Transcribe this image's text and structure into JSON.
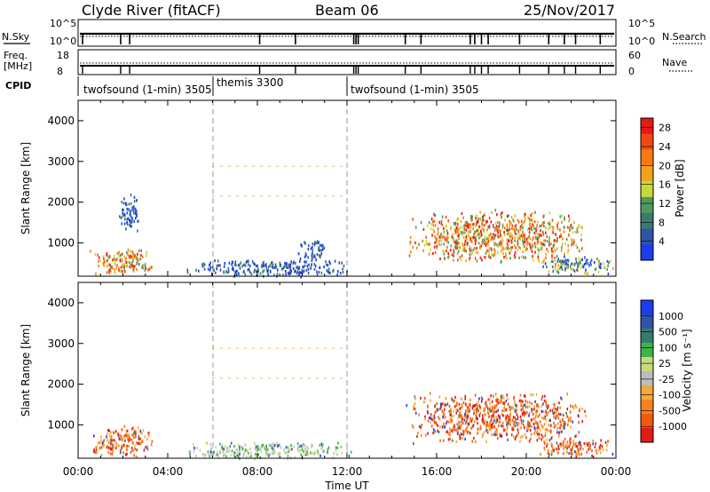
{
  "header": {
    "station": "Clyde River (fitACF)",
    "beam": "Beam 06",
    "date": "25/Nov/2017"
  },
  "params": {
    "nsky_label": "N.Sky",
    "nsky_ticks": [
      "10^5",
      "10^0"
    ],
    "nsearch_label": "N.Search",
    "nsearch_ticks": [
      "10^5",
      "10^0"
    ],
    "freq_label": "Freq.",
    "freq_unit": "[MHz]",
    "freq_ticks": [
      "18",
      "8"
    ],
    "nave_label": "Nave",
    "nave_ticks": [
      "60",
      "0"
    ],
    "cpid_label": "CPID"
  },
  "cpid_segments": [
    {
      "name": "twofsound (1-min) 3505",
      "start_hour": 0,
      "end_hour": 6
    },
    {
      "name": "themis 3300",
      "start_hour": 6,
      "end_hour": 12
    },
    {
      "name": "twofsound (1-min) 3505",
      "start_hour": 12,
      "end_hour": 24
    }
  ],
  "colors": {
    "power": [
      "#1c3cf0",
      "#2e55a8",
      "#3c7a6e",
      "#4f9a5a",
      "#c6d83a",
      "#f2a21c",
      "#f57a14",
      "#f04a10",
      "#e61818"
    ],
    "velocity": [
      "#e61818",
      "#f05a10",
      "#f5821c",
      "#f5a83a",
      "#bdbdbd",
      "#c4dc7a",
      "#3fb24a",
      "#3a7a6a",
      "#2e55a8",
      "#1c3cf0"
    ]
  },
  "chart_data": [
    {
      "type": "heatmap",
      "title": "Power",
      "ylabel": "Slant Range [km]",
      "xlabel": "Time UT",
      "x_ticks": [
        "00:00",
        "04:00",
        "08:00",
        "12:00",
        "16:00",
        "20:00",
        "00:00"
      ],
      "y_ticks": [
        "1000",
        "2000",
        "3000",
        "4000"
      ],
      "xlim_hours": [
        0,
        24
      ],
      "ylim_km": [
        180,
        4500
      ],
      "colorbar": {
        "label": "Power [dB]",
        "ticks": [
          "4",
          "8",
          "12",
          "16",
          "20",
          "24",
          "28"
        ],
        "range": [
          0,
          30
        ]
      },
      "scatter_regions": [
        {
          "t": [
            0.6,
            3.3
          ],
          "r": [
            250,
            900
          ],
          "level": "high"
        },
        {
          "t": [
            1.8,
            2.7
          ],
          "r": [
            1300,
            2200
          ],
          "level": "low"
        },
        {
          "t": [
            5.0,
            12.0
          ],
          "r": [
            200,
            600
          ],
          "level": "low"
        },
        {
          "t": [
            9.8,
            11.0
          ],
          "r": [
            600,
            1100
          ],
          "level": "low"
        },
        {
          "t": [
            14.8,
            22.5
          ],
          "r": [
            600,
            1800
          ],
          "level": "high"
        },
        {
          "t": [
            20.5,
            23.8
          ],
          "r": [
            250,
            700
          ],
          "level": "mid"
        }
      ],
      "range_lines_km": [
        2880,
        2150
      ]
    },
    {
      "type": "heatmap",
      "title": "Velocity",
      "ylabel": "Slant Range [km]",
      "xlabel": "Time UT",
      "x_ticks": [
        "00:00",
        "04:00",
        "08:00",
        "12:00",
        "16:00",
        "20:00",
        "00:00"
      ],
      "y_ticks": [
        "1000",
        "2000",
        "3000",
        "4000"
      ],
      "xlim_hours": [
        0,
        24
      ],
      "ylim_km": [
        180,
        4500
      ],
      "colorbar": {
        "label": "Velocity [m s⁻¹]",
        "ticks": [
          "1000",
          "500",
          "100",
          "25",
          "-25",
          "-100",
          "-500",
          "-1000"
        ],
        "range": [
          -1000,
          1000
        ]
      },
      "scatter_regions": [
        {
          "t": [
            0.6,
            3.3
          ],
          "r": [
            250,
            1000
          ],
          "level": "neg"
        },
        {
          "t": [
            5.0,
            12.0
          ],
          "r": [
            200,
            600
          ],
          "level": "ground"
        },
        {
          "t": [
            14.8,
            22.5
          ],
          "r": [
            600,
            1800
          ],
          "level": "neg"
        },
        {
          "t": [
            20.5,
            23.8
          ],
          "r": [
            250,
            700
          ],
          "level": "neg"
        }
      ],
      "range_lines_km": [
        2880,
        2150
      ]
    }
  ]
}
